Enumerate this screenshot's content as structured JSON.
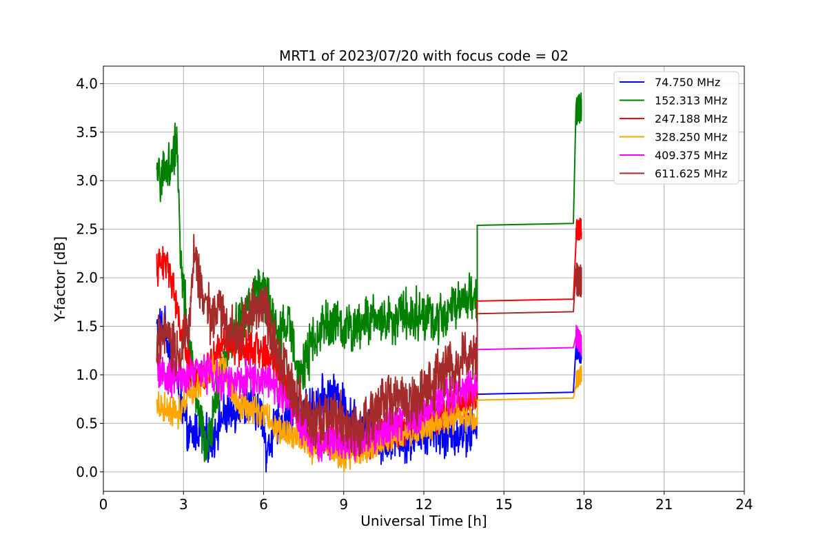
{
  "chart_data": {
    "type": "line",
    "title": "MRT1 of 2023/07/20 with focus code = 02",
    "xlabel": "Universal Time [h]",
    "ylabel": "Y-factor [dB]",
    "xlim": [
      0,
      24
    ],
    "ylim": [
      -0.2,
      4.18
    ],
    "xticks": [
      0,
      3,
      6,
      9,
      12,
      15,
      18,
      21,
      24
    ],
    "xtick_labels": [
      "0",
      "3",
      "6",
      "9",
      "12",
      "15",
      "18",
      "21",
      "24"
    ],
    "yticks": [
      0.0,
      0.5,
      1.0,
      1.5,
      2.0,
      2.5,
      3.0,
      3.5,
      4.0
    ],
    "ytick_labels": [
      "0.0",
      "0.5",
      "1.0",
      "1.5",
      "2.0",
      "2.5",
      "3.0",
      "3.5",
      "4.0"
    ],
    "grid": true,
    "legend_position": "top-right",
    "series": [
      {
        "name": " 74.750 MHz",
        "color": "#0000ff",
        "x": [
          2.0,
          2.3,
          2.6,
          2.9,
          3.2,
          3.6,
          4.0,
          4.4,
          4.8,
          5.2,
          5.6,
          6.0,
          6.1,
          6.4,
          6.8,
          7.2,
          7.6,
          8.0,
          8.4,
          8.8,
          9.2,
          9.6,
          10.0,
          10.4,
          10.8,
          11.2,
          11.6,
          12.0,
          12.4,
          12.8,
          13.2,
          13.6,
          14.0,
          17.6,
          17.7,
          17.9
        ],
        "y": [
          1.5,
          1.45,
          1.2,
          0.7,
          0.35,
          0.45,
          0.3,
          0.55,
          0.6,
          0.7,
          0.65,
          0.6,
          0.15,
          0.45,
          0.5,
          0.65,
          0.6,
          0.7,
          0.8,
          0.75,
          0.6,
          0.5,
          0.45,
          0.3,
          0.4,
          0.3,
          0.35,
          0.4,
          0.45,
          0.35,
          0.4,
          0.4,
          0.45,
          0.82,
          1.3,
          1.25
        ],
        "noise": 0.18
      },
      {
        "name": "152.313 MHz",
        "color": "#008000",
        "x": [
          2.0,
          2.3,
          2.6,
          2.75,
          2.9,
          3.2,
          3.6,
          3.9,
          4.3,
          4.8,
          5.3,
          5.8,
          6.1,
          6.5,
          7.0,
          7.4,
          7.8,
          8.2,
          8.6,
          9.0,
          9.5,
          10.0,
          10.5,
          11.0,
          11.5,
          12.0,
          12.5,
          13.0,
          13.5,
          14.0,
          17.6,
          17.7,
          17.9
        ],
        "y": [
          3.0,
          3.1,
          3.2,
          3.5,
          2.2,
          1.3,
          0.6,
          0.2,
          0.9,
          1.4,
          1.6,
          1.9,
          1.8,
          1.4,
          1.5,
          1.0,
          1.3,
          1.5,
          1.55,
          1.45,
          1.5,
          1.6,
          1.55,
          1.6,
          1.65,
          1.6,
          1.55,
          1.7,
          1.8,
          1.75,
          2.56,
          3.7,
          3.75
        ],
        "noise": 0.2
      },
      {
        "name": "247.188 MHz",
        "color": "#ff0000",
        "x": [
          2.0,
          2.3,
          2.5,
          2.8,
          3.2,
          3.6,
          4.0,
          4.5,
          5.0,
          5.5,
          6.0,
          6.5,
          7.0,
          7.4,
          7.8,
          8.2,
          8.6,
          9.0,
          9.5,
          10.0,
          10.5,
          11.0,
          11.5,
          12.0,
          12.5,
          13.0,
          13.5,
          14.0,
          17.6,
          17.7,
          17.9
        ],
        "y": [
          2.1,
          2.15,
          2.1,
          1.6,
          1.1,
          0.9,
          1.1,
          1.35,
          1.3,
          1.25,
          1.25,
          1.1,
          0.8,
          0.45,
          0.35,
          0.3,
          0.35,
          0.3,
          0.3,
          0.35,
          0.4,
          0.45,
          0.5,
          0.55,
          0.6,
          0.65,
          0.7,
          0.75,
          1.78,
          2.5,
          2.5
        ],
        "noise": 0.15
      },
      {
        "name": "328.250 MHz",
        "color": "#ffa500",
        "x": [
          2.0,
          2.4,
          2.8,
          3.2,
          3.6,
          4.0,
          4.5,
          5.0,
          5.5,
          6.0,
          6.5,
          7.0,
          7.4,
          7.8,
          8.2,
          8.6,
          9.0,
          9.5,
          10.0,
          10.5,
          11.0,
          11.5,
          12.0,
          12.5,
          13.0,
          13.5,
          14.0,
          17.6,
          17.7,
          17.9
        ],
        "y": [
          0.7,
          0.65,
          0.6,
          0.85,
          0.9,
          1.05,
          1.1,
          0.7,
          0.65,
          0.6,
          0.45,
          0.4,
          0.35,
          0.25,
          0.3,
          0.2,
          0.15,
          0.2,
          0.25,
          0.3,
          0.35,
          0.4,
          0.45,
          0.5,
          0.55,
          0.55,
          0.55,
          0.76,
          0.95,
          1.0
        ],
        "noise": 0.12
      },
      {
        "name": "409.375 MHz",
        "color": "#ff00ff",
        "x": [
          2.0,
          2.4,
          2.8,
          3.2,
          3.6,
          4.0,
          4.5,
          5.0,
          5.5,
          6.0,
          6.5,
          7.0,
          7.4,
          7.8,
          8.2,
          8.6,
          9.0,
          9.5,
          10.0,
          10.5,
          11.0,
          11.5,
          12.0,
          12.5,
          13.0,
          13.5,
          14.0,
          17.6,
          17.7,
          17.9
        ],
        "y": [
          1.05,
          0.95,
          1.0,
          1.0,
          1.05,
          1.0,
          0.9,
          0.95,
          1.0,
          0.95,
          0.85,
          0.7,
          0.45,
          0.35,
          0.25,
          0.35,
          0.3,
          0.3,
          0.35,
          0.45,
          0.5,
          0.55,
          0.6,
          0.7,
          0.8,
          0.85,
          0.9,
          1.28,
          1.4,
          1.3
        ],
        "noise": 0.15
      },
      {
        "name": "611.625 MHz",
        "color": "#a52a2a",
        "x": [
          2.0,
          2.4,
          2.8,
          3.2,
          3.4,
          3.7,
          4.0,
          4.3,
          4.6,
          5.0,
          5.5,
          5.9,
          6.2,
          6.6,
          7.0,
          7.4,
          7.8,
          8.2,
          8.6,
          9.0,
          9.5,
          10.0,
          10.5,
          11.0,
          11.5,
          12.0,
          12.5,
          13.0,
          13.5,
          14.0,
          17.6,
          17.7,
          17.9
        ],
        "y": [
          1.3,
          1.4,
          1.2,
          1.5,
          2.3,
          1.8,
          1.6,
          1.7,
          1.5,
          1.4,
          1.6,
          1.8,
          1.5,
          1.2,
          0.9,
          0.7,
          0.55,
          0.5,
          0.6,
          0.5,
          0.4,
          0.6,
          0.7,
          0.75,
          0.7,
          0.85,
          0.95,
          1.05,
          1.15,
          1.2,
          1.65,
          2.0,
          1.95
        ],
        "noise": 0.22
      }
    ]
  }
}
